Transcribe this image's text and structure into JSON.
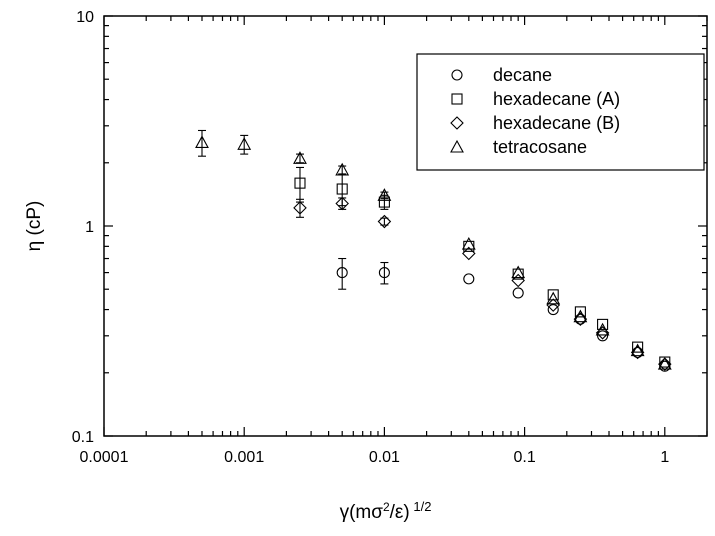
{
  "chart_data": {
    "type": "scatter",
    "title": "",
    "xlabel": "γ(mσ²/ε)^{1/2}",
    "ylabel": "η (cP)",
    "xscale": "log",
    "yscale": "log",
    "xlim": [
      0.0001,
      2
    ],
    "ylim": [
      0.1,
      10
    ],
    "xticks": [
      {
        "value": 0.0001,
        "label": "0.0001"
      },
      {
        "value": 0.001,
        "label": "0.001"
      },
      {
        "value": 0.01,
        "label": "0.01"
      },
      {
        "value": 0.1,
        "label": "0.1"
      },
      {
        "value": 1,
        "label": "1"
      }
    ],
    "yticks": [
      {
        "value": 0.1,
        "label": "0.1"
      },
      {
        "value": 1,
        "label": "1"
      },
      {
        "value": 10,
        "label": "10"
      }
    ],
    "grid": false,
    "legend_position": "top-right",
    "series": [
      {
        "name": "decane",
        "marker": "circle",
        "points": [
          {
            "x": 0.005,
            "y": 0.6,
            "err": 0.1
          },
          {
            "x": 0.01,
            "y": 0.6,
            "err": 0.07
          },
          {
            "x": 0.04,
            "y": 0.56
          },
          {
            "x": 0.09,
            "y": 0.48
          },
          {
            "x": 0.16,
            "y": 0.4
          },
          {
            "x": 0.25,
            "y": 0.36
          },
          {
            "x": 0.36,
            "y": 0.3
          },
          {
            "x": 0.64,
            "y": 0.25
          },
          {
            "x": 1.0,
            "y": 0.215
          }
        ]
      },
      {
        "name": "hexadecane (A)",
        "marker": "square",
        "points": [
          {
            "x": 0.0025,
            "y": 1.6,
            "err": 0.3
          },
          {
            "x": 0.005,
            "y": 1.5,
            "err": 0.25
          },
          {
            "x": 0.01,
            "y": 1.3,
            "err": 0.1
          },
          {
            "x": 0.04,
            "y": 0.8
          },
          {
            "x": 0.09,
            "y": 0.59
          },
          {
            "x": 0.16,
            "y": 0.47
          },
          {
            "x": 0.25,
            "y": 0.39
          },
          {
            "x": 0.36,
            "y": 0.34
          },
          {
            "x": 0.64,
            "y": 0.265
          },
          {
            "x": 1.0,
            "y": 0.225
          }
        ]
      },
      {
        "name": "hexadecane (B)",
        "marker": "diamond",
        "points": [
          {
            "x": 0.0025,
            "y": 1.22,
            "err": 0.12
          },
          {
            "x": 0.005,
            "y": 1.28,
            "err": 0.08
          },
          {
            "x": 0.01,
            "y": 1.05,
            "err": 0.04
          },
          {
            "x": 0.04,
            "y": 0.74
          },
          {
            "x": 0.09,
            "y": 0.55
          },
          {
            "x": 0.16,
            "y": 0.42
          },
          {
            "x": 0.25,
            "y": 0.36
          },
          {
            "x": 0.36,
            "y": 0.31
          },
          {
            "x": 0.64,
            "y": 0.25
          },
          {
            "x": 1.0,
            "y": 0.22
          }
        ]
      },
      {
        "name": "tetracosane",
        "marker": "triangle",
        "points": [
          {
            "x": 0.0005,
            "y": 2.5,
            "err": 0.35
          },
          {
            "x": 0.001,
            "y": 2.45,
            "err": 0.25
          },
          {
            "x": 0.0025,
            "y": 2.1,
            "err": 0.1
          },
          {
            "x": 0.005,
            "y": 1.85,
            "err": 0.08
          },
          {
            "x": 0.01,
            "y": 1.4,
            "err": 0.05
          },
          {
            "x": 0.04,
            "y": 0.82
          },
          {
            "x": 0.09,
            "y": 0.6
          },
          {
            "x": 0.16,
            "y": 0.45
          },
          {
            "x": 0.25,
            "y": 0.37
          },
          {
            "x": 0.36,
            "y": 0.32
          },
          {
            "x": 0.64,
            "y": 0.255
          },
          {
            "x": 1.0,
            "y": 0.22
          }
        ]
      }
    ]
  }
}
